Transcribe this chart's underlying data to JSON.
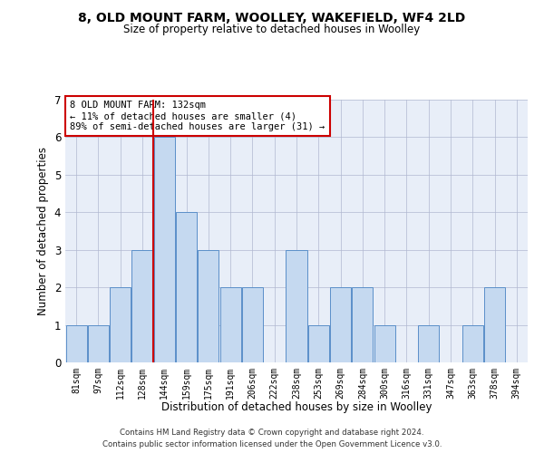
{
  "title_line1": "8, OLD MOUNT FARM, WOOLLEY, WAKEFIELD, WF4 2LD",
  "title_line2": "Size of property relative to detached houses in Woolley",
  "xlabel": "Distribution of detached houses by size in Woolley",
  "ylabel": "Number of detached properties",
  "annotation_line1": "8 OLD MOUNT FARM: 132sqm",
  "annotation_line2": "← 11% of detached houses are smaller (4)",
  "annotation_line3": "89% of semi-detached houses are larger (31) →",
  "categories": [
    "81sqm",
    "97sqm",
    "112sqm",
    "128sqm",
    "144sqm",
    "159sqm",
    "175sqm",
    "191sqm",
    "206sqm",
    "222sqm",
    "238sqm",
    "253sqm",
    "269sqm",
    "284sqm",
    "300sqm",
    "316sqm",
    "331sqm",
    "347sqm",
    "363sqm",
    "378sqm",
    "394sqm"
  ],
  "values": [
    1,
    1,
    2,
    3,
    6,
    4,
    3,
    2,
    2,
    0,
    3,
    1,
    2,
    2,
    1,
    0,
    1,
    0,
    1,
    2,
    0
  ],
  "bar_color": "#c5d9f0",
  "bar_edge_color": "#5b8fc9",
  "vline_index": 3.5,
  "vline_color": "#cc0000",
  "ylim": [
    0,
    7
  ],
  "yticks": [
    0,
    1,
    2,
    3,
    4,
    5,
    6,
    7
  ],
  "annotation_box_color": "#cc0000",
  "bg_color": "#e8eef8",
  "footer_line1": "Contains HM Land Registry data © Crown copyright and database right 2024.",
  "footer_line2": "Contains public sector information licensed under the Open Government Licence v3.0."
}
